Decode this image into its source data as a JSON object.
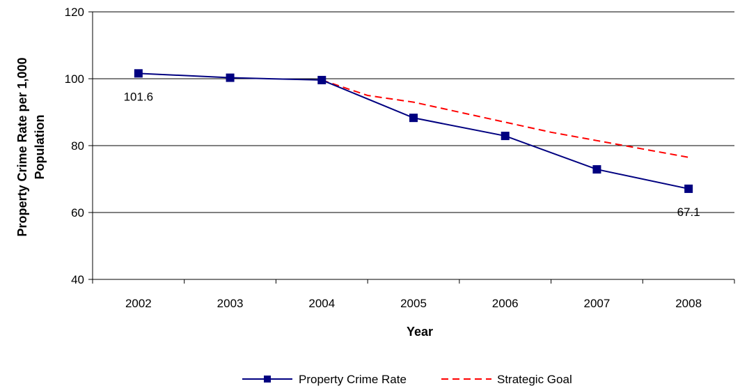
{
  "chart_data": {
    "type": "line",
    "title": "",
    "xlabel": "Year",
    "ylabel": "Property Crime Rate per 1,000 Population",
    "ylabel_lines": [
      "Property Crime Rate per 1,000",
      "Population"
    ],
    "categories": [
      "2002",
      "2003",
      "2004",
      "2005",
      "2006",
      "2007",
      "2008"
    ],
    "ylim": [
      40,
      120
    ],
    "yticks": [
      40,
      60,
      80,
      100,
      120
    ],
    "yticks_labels": [
      "40",
      "60",
      "80",
      "100",
      "120"
    ],
    "grid": "horizontal",
    "legend_position": "bottom",
    "series": [
      {
        "name": "Property Crime Rate",
        "values": [
          101.6,
          100.3,
          99.6,
          88.3,
          82.9,
          72.9,
          67.1
        ],
        "color": "#000080",
        "style": "solid",
        "marker": "square"
      },
      {
        "name": "Strategic Goal",
        "x": [
          2004,
          2004.5,
          2005,
          2005.5,
          2006,
          2006.5,
          2007,
          2007.5,
          2008
        ],
        "values": [
          99.6,
          95.0,
          93.0,
          90.0,
          87.0,
          84.0,
          81.5,
          79.0,
          76.5
        ],
        "color": "#ff0000",
        "style": "dashed"
      }
    ],
    "annotations": [
      {
        "category": "2002",
        "value": 101.6,
        "text": "101.6"
      },
      {
        "category": "2008",
        "value": 67.1,
        "text": "67.1"
      }
    ]
  }
}
